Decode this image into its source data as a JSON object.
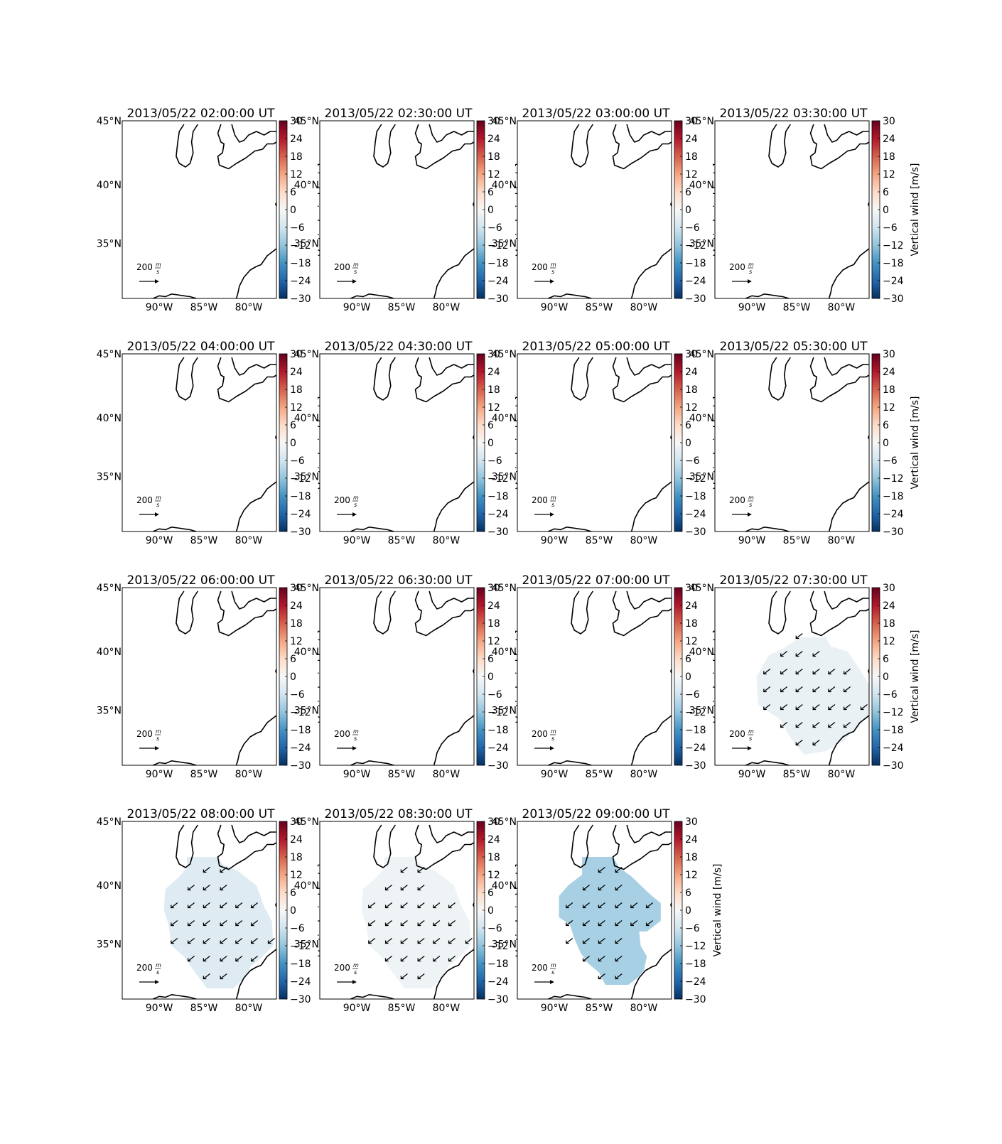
{
  "figure": {
    "colorbar_label": "Vertical wind [m/s]",
    "colorbar_ticks": [
      "30",
      "24",
      "18",
      "12",
      "6",
      "0",
      "−6",
      "−12",
      "−18",
      "−24",
      "−30"
    ],
    "lat_labels": [
      "45°N",
      "40°N",
      "35°N"
    ],
    "lon_labels": [
      "90°W",
      "85°W",
      "80°W"
    ],
    "arrow_key_value": "200",
    "arrow_key_unit_num": "m",
    "arrow_key_unit_den": "s",
    "colormap": [
      "#053061",
      "#2166ac",
      "#4393c3",
      "#92c5de",
      "#d1e5f0",
      "#f7f7f7",
      "#fddbc7",
      "#f4a582",
      "#d6604d",
      "#b2182b",
      "#67001f"
    ],
    "panels": [
      {
        "title": "2013/05/22 02:00:00 UT",
        "vertical_wind": null
      },
      {
        "title": "2013/05/22 02:30:00 UT",
        "vertical_wind": null
      },
      {
        "title": "2013/05/22 03:00:00 UT",
        "vertical_wind": null
      },
      {
        "title": "2013/05/22 03:30:00 UT",
        "vertical_wind": null
      },
      {
        "title": "2013/05/22 04:00:00 UT",
        "vertical_wind": null
      },
      {
        "title": "2013/05/22 04:30:00 UT",
        "vertical_wind": null
      },
      {
        "title": "2013/05/22 05:00:00 UT",
        "vertical_wind": null
      },
      {
        "title": "2013/05/22 05:30:00 UT",
        "vertical_wind": null
      },
      {
        "title": "2013/05/22 06:00:00 UT",
        "vertical_wind": null
      },
      {
        "title": "2013/05/22 06:30:00 UT",
        "vertical_wind": null
      },
      {
        "title": "2013/05/22 07:00:00 UT",
        "vertical_wind": null
      },
      {
        "title": "2013/05/22 07:30:00 UT",
        "vertical_wind": -2
      },
      {
        "title": "2013/05/22 08:00:00 UT",
        "vertical_wind": -4
      },
      {
        "title": "2013/05/22 08:30:00 UT",
        "vertical_wind": -1.5
      },
      {
        "title": "2013/05/22 09:00:00 UT",
        "vertical_wind": -10
      }
    ]
  }
}
